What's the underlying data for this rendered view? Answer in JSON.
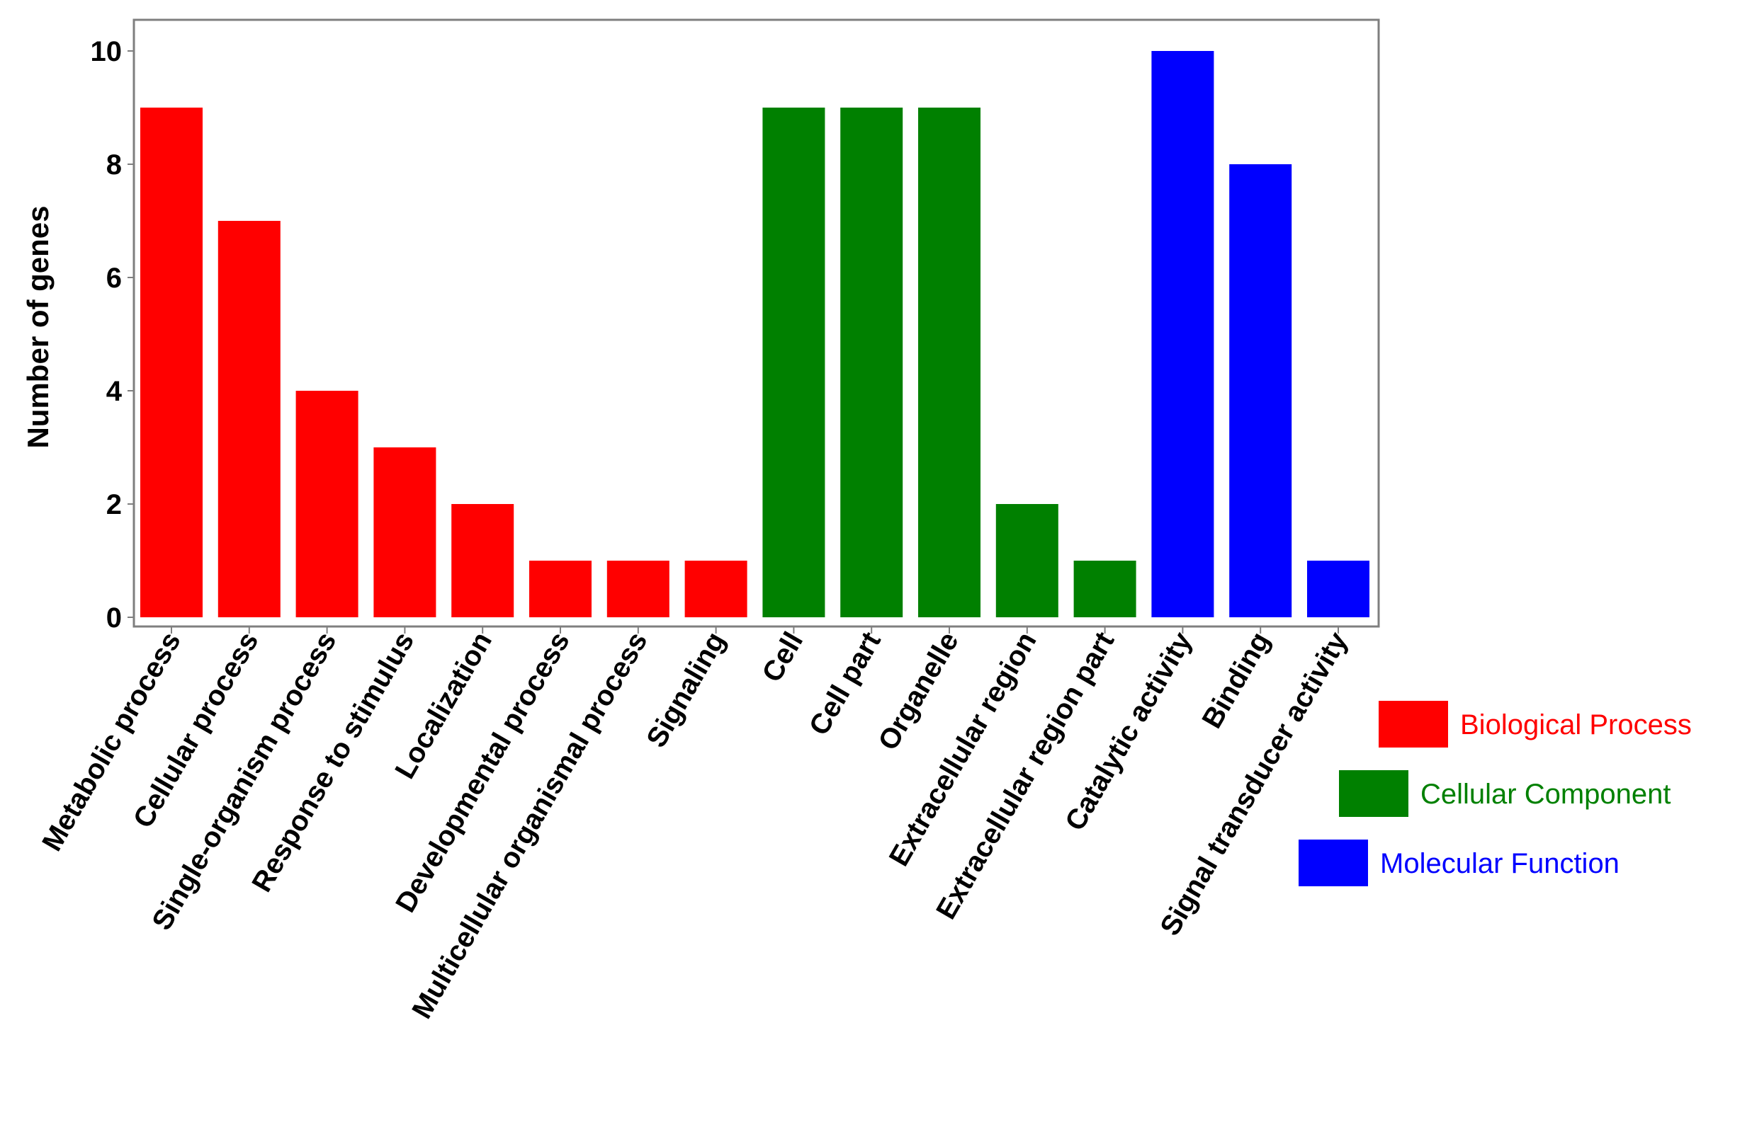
{
  "chart_data": {
    "type": "bar",
    "ylabel": "Number of genes",
    "xlabel": "",
    "ylim": [
      0,
      10.5
    ],
    "yticks": [
      "0",
      "2",
      "4",
      "6",
      "8",
      "10"
    ],
    "grid": false,
    "legend_position": "right",
    "categories": [
      "Metabolic process",
      "Cellular process",
      "Single-organism process",
      "Response to stimulus",
      "Localization",
      "Developmental process",
      "Multicellular organismal process",
      "Signaling",
      "Cell",
      "Cell part",
      "Organelle",
      "Extracellular region",
      "Extracellular region part",
      "Catalytic activity",
      "Binding",
      "Signal transducer activity"
    ],
    "values": [
      9,
      7,
      4,
      3,
      2,
      1,
      1,
      1,
      9,
      9,
      9,
      2,
      1,
      10,
      8,
      1
    ],
    "groups": [
      "Biological Process",
      "Biological Process",
      "Biological Process",
      "Biological Process",
      "Biological Process",
      "Biological Process",
      "Biological Process",
      "Biological Process",
      "Cellular Component",
      "Cellular Component",
      "Cellular Component",
      "Cellular Component",
      "Cellular Component",
      "Molecular Function",
      "Molecular Function",
      "Molecular Function"
    ],
    "legend": [
      {
        "name": "Biological Process",
        "color": "#ff0000"
      },
      {
        "name": "Cellular Component",
        "color": "#008000"
      },
      {
        "name": "Molecular Function",
        "color": "#0000ff"
      }
    ]
  }
}
